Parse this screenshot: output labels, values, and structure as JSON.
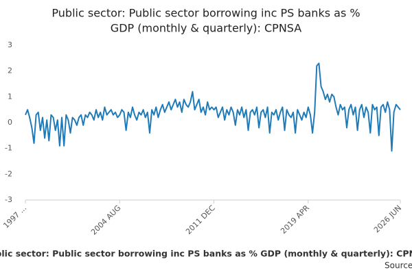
{
  "chart_data": {
    "type": "line",
    "title": [
      "Public sector: Public sector borrowing inc PS banks as %",
      "GDP (monthly & quarterly): CPNSA"
    ],
    "caption": "Public sector: Public sector borrowing inc PS banks as % GDP (monthly & quarterly): CPNSA",
    "source": "Source:",
    "ylim": [
      -3,
      3
    ],
    "yticks": [
      -3,
      -2,
      -1,
      0,
      1,
      2,
      3
    ],
    "categories": [
      "1997 ...",
      null,
      null,
      null,
      null,
      null,
      null,
      null,
      null,
      null,
      null,
      null,
      null,
      null,
      null,
      null,
      null,
      null,
      null,
      null,
      null,
      null,
      null,
      null,
      null,
      null,
      null,
      null,
      null,
      null,
      null,
      null,
      null,
      null,
      null,
      null,
      null,
      null,
      null,
      null,
      null,
      null,
      null,
      null,
      "2004 AUG",
      null,
      null,
      null,
      null,
      null,
      null,
      null,
      null,
      null,
      null,
      null,
      null,
      null,
      null,
      null,
      null,
      null,
      null,
      null,
      null,
      null,
      null,
      null,
      null,
      null,
      null,
      null,
      null,
      null,
      null,
      null,
      null,
      null,
      null,
      null,
      null,
      null,
      null,
      null,
      null,
      null,
      null,
      null,
      "2011 DEC",
      null,
      null,
      null,
      null,
      null,
      null,
      null,
      null,
      null,
      null,
      null,
      null,
      null,
      null,
      null,
      null,
      null,
      null,
      null,
      null,
      null,
      null,
      null,
      null,
      null,
      null,
      null,
      null,
      null,
      null,
      null,
      null,
      null,
      null,
      null,
      null,
      null,
      null,
      null,
      null,
      null,
      null,
      null,
      "2019 APR",
      null,
      null,
      null,
      null,
      null,
      null,
      null,
      null,
      null,
      null,
      null,
      null,
      null,
      null,
      null,
      null,
      null,
      null,
      null,
      null,
      null,
      null,
      null,
      null,
      null,
      null,
      null,
      null,
      null,
      null,
      null,
      null,
      null,
      null,
      null,
      null,
      null,
      null,
      null,
      null,
      null,
      null,
      "2026 JUN"
    ],
    "series": [
      {
        "color": "#1f7ab8",
        "values": [
          0.3,
          0.5,
          0.2,
          -0.2,
          -0.8,
          0.3,
          0.4,
          -0.3,
          0.2,
          -0.6,
          0.1,
          -0.7,
          0.3,
          0.2,
          -0.3,
          0.1,
          -0.9,
          0.2,
          -0.9,
          0.3,
          0.1,
          -0.4,
          0.2,
          0.1,
          -0.1,
          0.2,
          0.3,
          -0.1,
          0.3,
          0.2,
          0.4,
          0.3,
          0.1,
          0.5,
          0.2,
          0.4,
          0.1,
          0.6,
          0.3,
          0.4,
          0.5,
          0.3,
          0.4,
          0.2,
          0.3,
          0.5,
          0.4,
          -0.3,
          0.4,
          0.2,
          0.6,
          0.3,
          0.1,
          0.4,
          0.3,
          0.5,
          0.2,
          0.4,
          -0.4,
          0.5,
          0.3,
          0.6,
          0.2,
          0.5,
          0.7,
          0.4,
          0.6,
          0.8,
          0.5,
          0.7,
          0.9,
          0.6,
          0.8,
          0.4,
          0.9,
          0.7,
          0.6,
          0.8,
          1.2,
          0.5,
          0.7,
          0.9,
          0.4,
          0.6,
          0.3,
          0.8,
          0.5,
          0.6,
          0.5,
          0.6,
          0.2,
          0.4,
          0.6,
          0.1,
          0.5,
          0.3,
          0.6,
          0.4,
          -0.1,
          0.5,
          0.3,
          0.6,
          0.2,
          0.5,
          -0.3,
          0.4,
          0.5,
          0.3,
          0.6,
          -0.2,
          0.4,
          0.5,
          0.2,
          0.6,
          -0.4,
          0.4,
          0.3,
          0.5,
          0.1,
          0.4,
          0.6,
          -0.3,
          0.5,
          0.3,
          0.2,
          0.4,
          -0.4,
          0.5,
          0.3,
          0.1,
          0.4,
          0.2,
          0.6,
          0.3,
          -0.4,
          0.4,
          2.2,
          2.3,
          1.4,
          1.2,
          0.9,
          1.1,
          0.8,
          1.1,
          1.0,
          0.6,
          0.3,
          0.7,
          0.5,
          0.6,
          -0.2,
          0.5,
          0.7,
          0.3,
          0.6,
          -0.3,
          0.5,
          0.7,
          0.2,
          0.6,
          0.4,
          -0.4,
          0.7,
          0.5,
          0.6,
          -0.5,
          0.6,
          0.7,
          0.4,
          0.8,
          0.5,
          -1.1,
          0.4,
          0.7,
          0.6,
          0.5
        ]
      }
    ]
  }
}
